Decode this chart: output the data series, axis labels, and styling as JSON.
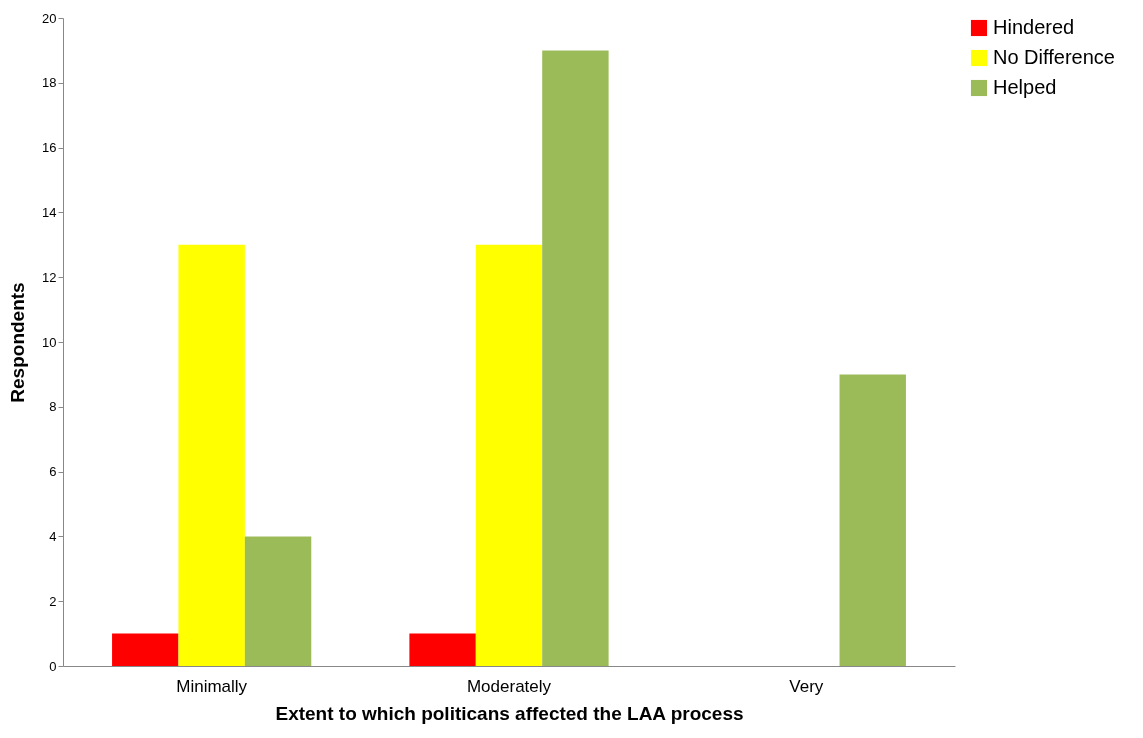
{
  "chart_data": {
    "type": "bar",
    "xlabel": "Extent to which politicans affected the LAA process",
    "ylabel": "Respondents",
    "categories": [
      "Minimally",
      "Moderately",
      "Very"
    ],
    "series": [
      {
        "name": "Hindered",
        "color": "#ff0000",
        "values": [
          1,
          1,
          0
        ]
      },
      {
        "name": "No Difference",
        "color": "#ffff00",
        "values": [
          13,
          13,
          0
        ]
      },
      {
        "name": "Helped",
        "color": "#9bbb59",
        "values": [
          4,
          19,
          9
        ]
      }
    ],
    "ylim": [
      0,
      20
    ],
    "yticks": [
      0,
      2,
      4,
      6,
      8,
      10,
      12,
      14,
      16,
      18,
      20
    ],
    "legend": "right"
  }
}
